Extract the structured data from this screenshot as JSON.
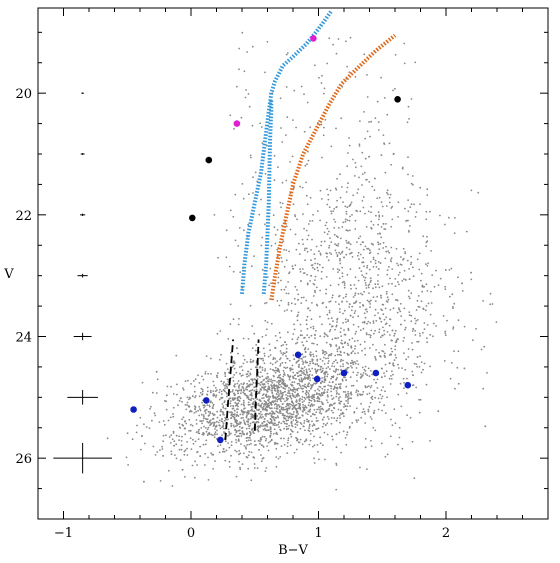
{
  "chart_data": {
    "type": "scatter",
    "title": "",
    "xlabel": "B−V",
    "ylabel": "V",
    "xlim": [
      -1.2,
      2.8
    ],
    "ylim": [
      27.0,
      18.6
    ],
    "y_inverted": true,
    "grid": false,
    "legend": "none",
    "x_ticks": [
      -1,
      0,
      1,
      2
    ],
    "x_tick_labels": [
      "−1",
      "0",
      "1",
      "2"
    ],
    "y_ticks": [
      20,
      22,
      24,
      26
    ],
    "y_tick_labels": [
      "20",
      "22",
      "24",
      "26"
    ],
    "x_minor_step": 0.2,
    "y_minor_step": 0.5,
    "field_stars": {
      "color": "#8a8a8a",
      "approx_count": 3500,
      "bulk_center": {
        "bv": 0.6,
        "v": 25.1
      },
      "bulk_spread": {
        "bv": 0.35,
        "v": 0.45
      },
      "red_plume_center": {
        "bv": 1.3,
        "v": 23.4
      },
      "red_plume_spread": {
        "bv": 0.4,
        "v": 1.05
      },
      "sparse_upper_bv_range": [
        0.3,
        1.8
      ],
      "sparse_upper_v_range": [
        19.0,
        23.0
      ]
    },
    "error_bars": {
      "bv": -0.85,
      "v": [
        20,
        21,
        22,
        23,
        24,
        25,
        26
      ],
      "bv_err": [
        0.01,
        0.015,
        0.02,
        0.04,
        0.07,
        0.12,
        0.23
      ],
      "v_err": [
        0.01,
        0.015,
        0.02,
        0.03,
        0.06,
        0.12,
        0.25
      ]
    },
    "series": [
      {
        "style": "dotted",
        "color": "#3399dd",
        "x": [
          0.4,
          0.42,
          0.45,
          0.5,
          0.55,
          0.58,
          0.61,
          0.63,
          0.66,
          0.72,
          0.8,
          0.9,
          0.98,
          1.05,
          1.1
        ],
        "y": [
          23.3,
          22.8,
          22.3,
          21.8,
          21.3,
          20.8,
          20.3,
          20.0,
          19.8,
          19.55,
          19.4,
          19.2,
          19.0,
          18.8,
          18.65
        ]
      },
      {
        "style": "dotted",
        "color": "#3399dd",
        "x": [
          0.57,
          0.59,
          0.6,
          0.61,
          0.615,
          0.62,
          0.625,
          0.63,
          0.63
        ],
        "y": [
          23.3,
          22.8,
          22.3,
          21.8,
          21.3,
          20.8,
          20.5,
          20.3,
          20.1
        ]
      },
      {
        "style": "dotted",
        "color": "#e06a1b",
        "x": [
          0.63,
          0.66,
          0.7,
          0.75,
          0.8,
          0.88,
          0.98,
          1.08,
          1.18,
          1.3,
          1.45,
          1.6
        ],
        "y": [
          23.4,
          23.0,
          22.5,
          22.0,
          21.5,
          21.0,
          20.6,
          20.2,
          19.85,
          19.6,
          19.3,
          19.05
        ]
      },
      {
        "style": "dashed",
        "color": "#000000",
        "x": [
          0.27,
          0.29,
          0.31,
          0.33
        ],
        "y": [
          25.7,
          25.1,
          24.6,
          24.05
        ]
      },
      {
        "style": "dashed",
        "color": "#000000",
        "x": [
          0.5,
          0.51,
          0.52,
          0.53
        ],
        "y": [
          25.55,
          25.0,
          24.55,
          24.05
        ]
      }
    ],
    "highlighted_points": [
      {
        "color": "#e020d0",
        "x": [
          0.96,
          0.36
        ],
        "y": [
          19.1,
          20.5
        ]
      },
      {
        "color": "#000000",
        "x": [
          1.62,
          0.14,
          0.01
        ],
        "y": [
          20.1,
          21.1,
          22.05
        ]
      },
      {
        "color": "#1020c0",
        "x": [
          -0.45,
          0.12,
          0.23,
          0.84,
          0.99,
          1.2,
          1.45,
          1.7
        ],
        "y": [
          25.2,
          25.05,
          25.7,
          24.3,
          24.7,
          24.6,
          24.6,
          24.8
        ]
      }
    ]
  }
}
